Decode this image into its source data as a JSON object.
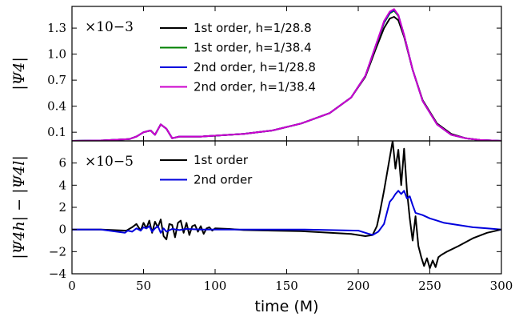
{
  "chart_data": [
    {
      "type": "line",
      "panel": "top",
      "ylabel": "|Ψ4|",
      "multiplier": "×10−3",
      "xlim": [
        0,
        300
      ],
      "ylim": [
        0.0,
        1.55
      ],
      "yticks": [
        0.1,
        0.4,
        0.7,
        1.0,
        1.3
      ],
      "ytick_labels": [
        "0.1",
        "0.4",
        "0.7",
        "1.0",
        "1.3"
      ],
      "legend_position": "top-left",
      "grid": false,
      "series": [
        {
          "name": "1st order, h=1/28.8",
          "color": "#000000",
          "x": [
            0,
            20,
            40,
            45,
            50,
            55,
            58,
            62,
            66,
            70,
            75,
            80,
            90,
            100,
            120,
            140,
            160,
            180,
            195,
            205,
            212,
            218,
            222,
            225,
            228,
            232,
            238,
            245,
            255,
            265,
            275,
            285,
            300
          ],
          "y": [
            0.0,
            0.005,
            0.02,
            0.05,
            0.1,
            0.12,
            0.07,
            0.19,
            0.14,
            0.03,
            0.05,
            0.05,
            0.05,
            0.06,
            0.08,
            0.12,
            0.2,
            0.32,
            0.5,
            0.74,
            1.05,
            1.3,
            1.41,
            1.43,
            1.39,
            1.2,
            0.82,
            0.47,
            0.2,
            0.08,
            0.03,
            0.01,
            0.0
          ]
        },
        {
          "name": "1st order, h=1/38.4",
          "color": "#008000",
          "x": [
            0,
            20,
            40,
            45,
            50,
            55,
            58,
            62,
            66,
            70,
            75,
            80,
            90,
            100,
            120,
            140,
            160,
            180,
            195,
            205,
            212,
            218,
            222,
            225,
            228,
            232,
            238,
            245,
            255,
            265,
            275,
            285,
            300
          ],
          "y": [
            0.0,
            0.005,
            0.02,
            0.05,
            0.1,
            0.12,
            0.07,
            0.19,
            0.14,
            0.03,
            0.05,
            0.05,
            0.05,
            0.06,
            0.08,
            0.12,
            0.2,
            0.32,
            0.5,
            0.75,
            1.08,
            1.36,
            1.47,
            1.5,
            1.44,
            1.22,
            0.82,
            0.46,
            0.19,
            0.07,
            0.03,
            0.01,
            0.0
          ]
        },
        {
          "name": "2nd order, h=1/28.8",
          "color": "#0000dd",
          "x": [
            0,
            20,
            40,
            45,
            50,
            55,
            58,
            62,
            66,
            70,
            75,
            80,
            90,
            100,
            120,
            140,
            160,
            180,
            195,
            205,
            212,
            218,
            222,
            225,
            228,
            232,
            238,
            245,
            255,
            265,
            275,
            285,
            300
          ],
          "y": [
            0.0,
            0.005,
            0.02,
            0.05,
            0.1,
            0.12,
            0.07,
            0.19,
            0.14,
            0.03,
            0.05,
            0.05,
            0.05,
            0.06,
            0.08,
            0.12,
            0.2,
            0.32,
            0.5,
            0.75,
            1.09,
            1.37,
            1.48,
            1.51,
            1.45,
            1.22,
            0.82,
            0.46,
            0.19,
            0.07,
            0.03,
            0.01,
            0.0
          ]
        },
        {
          "name": "2nd order, h=1/38.4",
          "color": "#cc00cc",
          "x": [
            0,
            20,
            40,
            45,
            50,
            55,
            58,
            62,
            66,
            70,
            75,
            80,
            90,
            100,
            120,
            140,
            160,
            180,
            195,
            205,
            212,
            218,
            222,
            225,
            228,
            232,
            238,
            245,
            255,
            265,
            275,
            285,
            300
          ],
          "y": [
            0.0,
            0.005,
            0.02,
            0.05,
            0.1,
            0.12,
            0.07,
            0.19,
            0.14,
            0.03,
            0.05,
            0.05,
            0.05,
            0.06,
            0.08,
            0.12,
            0.2,
            0.32,
            0.5,
            0.75,
            1.09,
            1.38,
            1.49,
            1.52,
            1.45,
            1.22,
            0.82,
            0.46,
            0.19,
            0.07,
            0.03,
            0.01,
            0.0
          ]
        }
      ]
    },
    {
      "type": "line",
      "panel": "bottom",
      "ylabel": "|Ψ4h| − |Ψ4l|",
      "multiplier": "×10−5",
      "xlabel": "time (M)",
      "xlim": [
        0,
        300
      ],
      "ylim": [
        -4,
        8
      ],
      "xticks": [
        0,
        50,
        100,
        150,
        200,
        250,
        300
      ],
      "xtick_labels": [
        "0",
        "50",
        "100",
        "150",
        "200",
        "250",
        "300"
      ],
      "yticks": [
        -4,
        -2,
        0,
        2,
        4,
        6
      ],
      "ytick_labels": [
        "−4",
        "−2",
        "0",
        "2",
        "4",
        "6"
      ],
      "legend_position": "top-left",
      "grid": false,
      "series": [
        {
          "name": "1st order",
          "color": "#000000",
          "x": [
            0,
            20,
            38,
            42,
            45,
            48,
            50,
            52,
            54,
            56,
            58,
            60,
            62,
            64,
            66,
            68,
            70,
            72,
            74,
            76,
            78,
            80,
            82,
            84,
            86,
            88,
            90,
            92,
            94,
            96,
            98,
            100,
            110,
            120,
            140,
            160,
            180,
            195,
            200,
            205,
            210,
            213,
            215,
            218,
            220,
            222,
            224,
            226,
            228,
            230,
            232,
            234,
            236,
            238,
            240,
            242,
            244,
            246,
            248,
            250,
            252,
            254,
            256,
            258,
            262,
            270,
            280,
            290,
            300
          ],
          "y": [
            0.0,
            0.0,
            -0.1,
            0.2,
            0.5,
            -0.1,
            0.6,
            0.1,
            0.8,
            -0.3,
            0.7,
            0.2,
            0.9,
            -0.6,
            -0.9,
            0.5,
            0.4,
            -0.7,
            0.6,
            0.8,
            -0.3,
            0.6,
            -0.5,
            0.3,
            0.4,
            -0.2,
            0.3,
            -0.4,
            0.1,
            0.2,
            -0.1,
            0.1,
            0.05,
            -0.05,
            -0.1,
            -0.15,
            -0.3,
            -0.4,
            -0.5,
            -0.6,
            -0.5,
            0.3,
            1.5,
            3.5,
            5.0,
            6.5,
            8.0,
            5.5,
            7.2,
            4.0,
            7.3,
            3.5,
            1.0,
            -1.0,
            1.2,
            -1.5,
            -2.5,
            -3.3,
            -2.6,
            -3.5,
            -2.8,
            -3.4,
            -2.5,
            -2.3,
            -2.0,
            -1.5,
            -0.8,
            -0.3,
            0.0
          ]
        },
        {
          "name": "2nd order",
          "color": "#0000dd",
          "x": [
            0,
            20,
            37,
            39,
            42,
            45,
            48,
            50,
            52,
            54,
            56,
            58,
            60,
            62,
            64,
            66,
            70,
            75,
            80,
            90,
            100,
            120,
            140,
            160,
            180,
            200,
            205,
            210,
            214,
            218,
            220,
            222,
            224,
            226,
            228,
            230,
            232,
            234,
            236,
            238,
            240,
            245,
            250,
            255,
            260,
            270,
            280,
            290,
            300
          ],
          "y": [
            0.0,
            0.0,
            -0.3,
            -0.1,
            -0.2,
            0.1,
            -0.1,
            0.2,
            0.1,
            0.3,
            -0.2,
            0.1,
            0.3,
            -0.3,
            0.1,
            -0.2,
            0.05,
            -0.05,
            0.05,
            0.0,
            0.0,
            0.0,
            0.0,
            0.0,
            -0.05,
            -0.1,
            -0.3,
            -0.5,
            -0.2,
            0.5,
            1.5,
            2.5,
            2.8,
            3.2,
            3.5,
            3.2,
            3.5,
            2.8,
            3.0,
            2.2,
            1.5,
            1.3,
            1.0,
            0.8,
            0.6,
            0.4,
            0.2,
            0.1,
            0.0
          ]
        }
      ]
    }
  ]
}
